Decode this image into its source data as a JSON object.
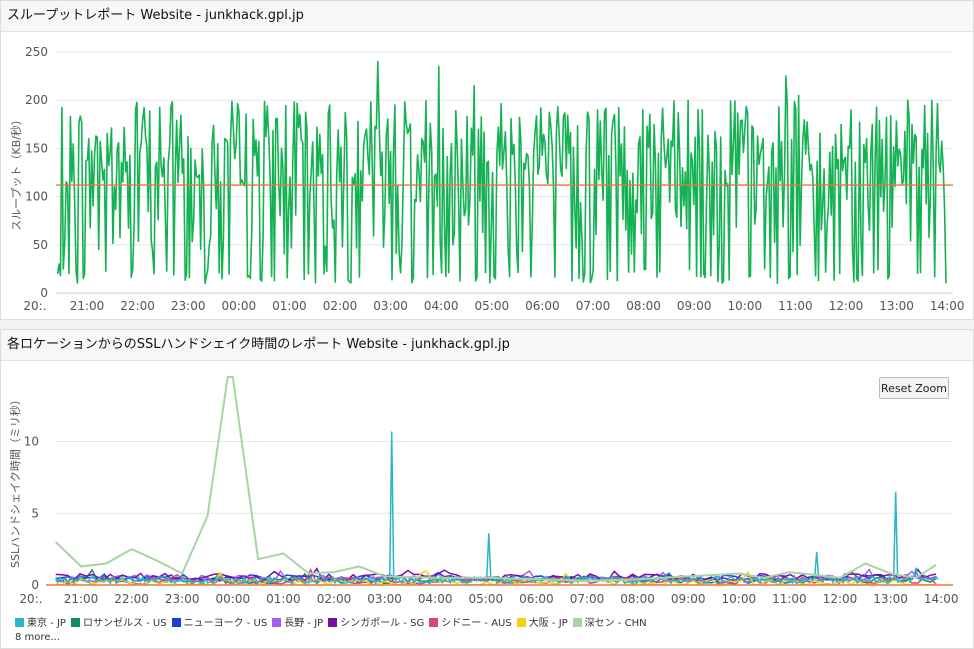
{
  "chart_data": [
    {
      "type": "line",
      "title": "スループットレポート Website - junkhack.gpl.jp",
      "xlabel": "",
      "ylabel": "スループット（KB/秒）",
      "ylim": [
        0,
        250
      ],
      "y_ticks": [
        "0",
        "50",
        "100",
        "150",
        "200",
        "250"
      ],
      "x_ticks": [
        "20:.",
        "21:00",
        "22:00",
        "23:00",
        "00:00",
        "01:00",
        "02:00",
        "03:00",
        "04:00",
        "05:00",
        "06:00",
        "07:00",
        "08:00",
        "09:00",
        "10:00",
        "11:00",
        "12:00",
        "13:00",
        "14:00"
      ],
      "x_range_hours": [
        20.25,
        14.05
      ],
      "series_color": "#15b254",
      "average_line": {
        "value": 112,
        "color": "#e4793b"
      },
      "grid": true,
      "note_values": "throughput oscillates between ~10 and ~240 KB/s; peaks ≈ 240 near 02:45, 225 near 10:50, 215 near 04:40"
    },
    {
      "type": "line",
      "title": "各ロケーションからのSSLハンドシェイク時間のレポート Website - junkhack.gpl.jp",
      "xlabel": "",
      "ylabel": "SSLハンドシェイク時間（ミリ秒）",
      "ylim": [
        0,
        14.5
      ],
      "y_ticks": [
        "0",
        "5",
        "10"
      ],
      "x_ticks": [
        "20:.",
        "21:00",
        "22:00",
        "23:00",
        "00:00",
        "01:00",
        "02:00",
        "03:00",
        "04:00",
        "05:00",
        "06:00",
        "07:00",
        "08:00",
        "09:00",
        "10:00",
        "11:00",
        "12:00",
        "13:00",
        "14:00"
      ],
      "legend_position": "bottom",
      "reset_zoom_label": "Reset Zoom",
      "more_label": "8 more...",
      "series": [
        {
          "name": "東京 - JP",
          "color": "#2ab5c9"
        },
        {
          "name": "ロサンゼルス - US",
          "color": "#108a6b"
        },
        {
          "name": "ニューヨーク - US",
          "color": "#1a3fd9"
        },
        {
          "name": "長野 - JP",
          "color": "#a05ff0"
        },
        {
          "name": "シンガポール - SG",
          "color": "#7b0ea7"
        },
        {
          "name": "シドニー - AUS",
          "color": "#d9447a"
        },
        {
          "name": "大阪 - JP",
          "color": "#f2d30a"
        },
        {
          "name": "深セン - CHN",
          "color": "#a8d4a4"
        }
      ],
      "shenzhen_points": [
        [
          20.5,
          3.0
        ],
        [
          21.0,
          1.3
        ],
        [
          21.5,
          1.5
        ],
        [
          22.0,
          2.5
        ],
        [
          22.5,
          1.7
        ],
        [
          23.0,
          0.8
        ],
        [
          23.5,
          4.8
        ],
        [
          23.9,
          14.5
        ],
        [
          24.0,
          14.5
        ],
        [
          24.5,
          1.8
        ],
        [
          25.0,
          2.2
        ],
        [
          25.5,
          0.8
        ],
        [
          26.0,
          0.9
        ],
        [
          26.5,
          1.3
        ],
        [
          27.0,
          0.6
        ],
        [
          28.0,
          0.5
        ],
        [
          29.0,
          0.5
        ],
        [
          30.0,
          0.4
        ],
        [
          31.0,
          0.3
        ],
        [
          32.0,
          0.4
        ],
        [
          33.0,
          0.6
        ],
        [
          34.0,
          0.8
        ],
        [
          34.5,
          0.5
        ],
        [
          35.0,
          0.9
        ],
        [
          36.0,
          0.5
        ],
        [
          36.5,
          1.5
        ],
        [
          37.0,
          0.8
        ],
        [
          37.5,
          0.5
        ],
        [
          37.9,
          1.4
        ]
      ],
      "tokyo_spikes": [
        [
          27.15,
          10.7
        ],
        [
          29.05,
          3.6
        ],
        [
          35.55,
          2.3
        ],
        [
          37.1,
          6.5
        ],
        [
          37.5,
          1.2
        ]
      ]
    }
  ]
}
